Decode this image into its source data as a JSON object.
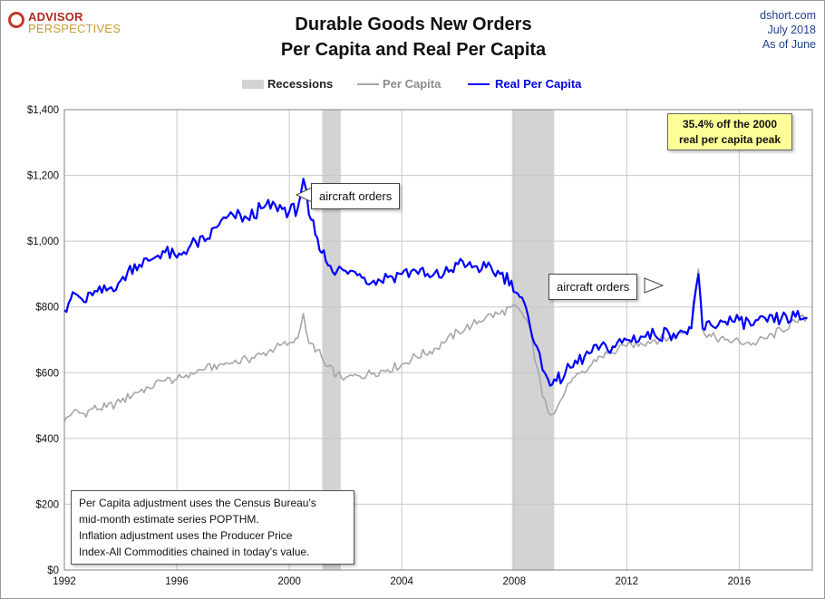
{
  "logo": {
    "top": "ADVISOR",
    "bottom": "PERSPECTIVES"
  },
  "header": {
    "title_line1": "Durable Goods New Orders",
    "title_line2": "Per Capita and Real Per Capita"
  },
  "source": {
    "site": "dshort.com",
    "date": "July 2018",
    "as_of": "As  of June"
  },
  "legend": {
    "recessions": "Recessions",
    "per_capita": "Per Capita",
    "real_per_capita": "Real Per Capita"
  },
  "annotations": {
    "peak_line1": "35.4% off the 2000",
    "peak_line2": "real per capita peak",
    "aircraft1": "aircraft orders",
    "aircraft2": "aircraft orders"
  },
  "note": {
    "line1": "Per Capita adjustment uses the Census Bureau's",
    "line2": "mid-month estimate series POPTHM.",
    "line3": "Inflation adjustment uses the Producer Price",
    "line4": "Index-All Commodities chained in today's value."
  },
  "colors": {
    "per_capita": "#a6a6a6",
    "real_per_capita": "#0000ff",
    "recession": "#d3d3d3",
    "grid": "#c8c8c8",
    "annotation_fill": "#ffff99",
    "source_text": "#1f3f8a"
  },
  "chart_data": {
    "type": "line",
    "title": "Durable Goods New Orders Per Capita and Real Per Capita",
    "xlim": [
      1992,
      2018.6
    ],
    "ylim": [
      0,
      1400
    ],
    "x_ticks": [
      1992,
      1996,
      2000,
      2004,
      2008,
      2012,
      2016
    ],
    "x_tick_labels": [
      "1992",
      "1996",
      "2000",
      "2004",
      "2008",
      "2012",
      "2016"
    ],
    "y_ticks": [
      0,
      200,
      400,
      600,
      800,
      1000,
      1200,
      1400
    ],
    "y_tick_labels": [
      "$0",
      "$200",
      "$400",
      "$600",
      "$800",
      "$1,000",
      "$1,200",
      "$1,400"
    ],
    "grid": true,
    "legend_position": "top",
    "recessions": [
      {
        "start": 2001.17,
        "end": 2001.83
      },
      {
        "start": 2007.92,
        "end": 2009.42
      }
    ],
    "series": [
      {
        "name": "Per Capita",
        "color": "#a6a6a6",
        "points": [
          [
            1992.0,
            450
          ],
          [
            1992.3,
            480
          ],
          [
            1992.7,
            475
          ],
          [
            1993.0,
            490
          ],
          [
            1993.5,
            495
          ],
          [
            1994.0,
            510
          ],
          [
            1994.5,
            540
          ],
          [
            1995.0,
            555
          ],
          [
            1995.5,
            575
          ],
          [
            1996.0,
            580
          ],
          [
            1996.5,
            600
          ],
          [
            1997.0,
            610
          ],
          [
            1997.5,
            625
          ],
          [
            1998.0,
            630
          ],
          [
            1998.5,
            640
          ],
          [
            1999.0,
            655
          ],
          [
            1999.5,
            675
          ],
          [
            2000.0,
            690
          ],
          [
            2000.3,
            705
          ],
          [
            2000.5,
            780
          ],
          [
            2000.7,
            690
          ],
          [
            2001.0,
            670
          ],
          [
            2001.3,
            620
          ],
          [
            2001.7,
            595
          ],
          [
            2002.0,
            585
          ],
          [
            2002.5,
            590
          ],
          [
            2003.0,
            600
          ],
          [
            2003.5,
            610
          ],
          [
            2004.0,
            625
          ],
          [
            2004.5,
            650
          ],
          [
            2005.0,
            665
          ],
          [
            2005.5,
            690
          ],
          [
            2006.0,
            725
          ],
          [
            2006.5,
            745
          ],
          [
            2007.0,
            770
          ],
          [
            2007.5,
            780
          ],
          [
            2007.9,
            800
          ],
          [
            2008.2,
            790
          ],
          [
            2008.5,
            750
          ],
          [
            2008.8,
            620
          ],
          [
            2009.0,
            530
          ],
          [
            2009.2,
            480
          ],
          [
            2009.5,
            490
          ],
          [
            2009.8,
            540
          ],
          [
            2010.0,
            570
          ],
          [
            2010.5,
            600
          ],
          [
            2011.0,
            650
          ],
          [
            2011.5,
            660
          ],
          [
            2012.0,
            680
          ],
          [
            2012.5,
            690
          ],
          [
            2013.0,
            700
          ],
          [
            2013.5,
            705
          ],
          [
            2014.0,
            720
          ],
          [
            2014.3,
            740
          ],
          [
            2014.55,
            915
          ],
          [
            2014.7,
            730
          ],
          [
            2015.0,
            710
          ],
          [
            2015.5,
            700
          ],
          [
            2016.0,
            695
          ],
          [
            2016.5,
            690
          ],
          [
            2017.0,
            705
          ],
          [
            2017.5,
            730
          ],
          [
            2018.0,
            755
          ],
          [
            2018.42,
            770
          ]
        ]
      },
      {
        "name": "Real Per Capita",
        "color": "#0000ff",
        "points": [
          [
            1992.0,
            790
          ],
          [
            1992.3,
            845
          ],
          [
            1992.7,
            815
          ],
          [
            1993.0,
            835
          ],
          [
            1993.5,
            850
          ],
          [
            1994.0,
            880
          ],
          [
            1994.5,
            930
          ],
          [
            1995.0,
            940
          ],
          [
            1995.5,
            970
          ],
          [
            1996.0,
            950
          ],
          [
            1996.5,
            990
          ],
          [
            1997.0,
            1000
          ],
          [
            1997.5,
            1050
          ],
          [
            1998.0,
            1080
          ],
          [
            1998.5,
            1070
          ],
          [
            1999.0,
            1100
          ],
          [
            1999.5,
            1110
          ],
          [
            2000.0,
            1090
          ],
          [
            2000.3,
            1100
          ],
          [
            2000.5,
            1190
          ],
          [
            2000.7,
            1080
          ],
          [
            2001.0,
            1010
          ],
          [
            2001.3,
            940
          ],
          [
            2001.7,
            910
          ],
          [
            2002.0,
            910
          ],
          [
            2002.5,
            900
          ],
          [
            2003.0,
            880
          ],
          [
            2003.5,
            890
          ],
          [
            2004.0,
            900
          ],
          [
            2004.5,
            910
          ],
          [
            2005.0,
            890
          ],
          [
            2005.5,
            900
          ],
          [
            2006.0,
            930
          ],
          [
            2006.5,
            920
          ],
          [
            2007.0,
            920
          ],
          [
            2007.5,
            900
          ],
          [
            2007.9,
            880
          ],
          [
            2008.2,
            830
          ],
          [
            2008.5,
            770
          ],
          [
            2008.8,
            680
          ],
          [
            2009.0,
            610
          ],
          [
            2009.2,
            580
          ],
          [
            2009.5,
            575
          ],
          [
            2009.8,
            595
          ],
          [
            2010.0,
            615
          ],
          [
            2010.5,
            650
          ],
          [
            2011.0,
            670
          ],
          [
            2011.5,
            680
          ],
          [
            2012.0,
            700
          ],
          [
            2012.5,
            710
          ],
          [
            2013.0,
            715
          ],
          [
            2013.5,
            720
          ],
          [
            2014.0,
            725
          ],
          [
            2014.3,
            735
          ],
          [
            2014.55,
            900
          ],
          [
            2014.7,
            735
          ],
          [
            2015.0,
            745
          ],
          [
            2015.5,
            755
          ],
          [
            2016.0,
            760
          ],
          [
            2016.5,
            745
          ],
          [
            2017.0,
            755
          ],
          [
            2017.5,
            765
          ],
          [
            2018.0,
            770
          ],
          [
            2018.42,
            765
          ]
        ]
      }
    ]
  }
}
